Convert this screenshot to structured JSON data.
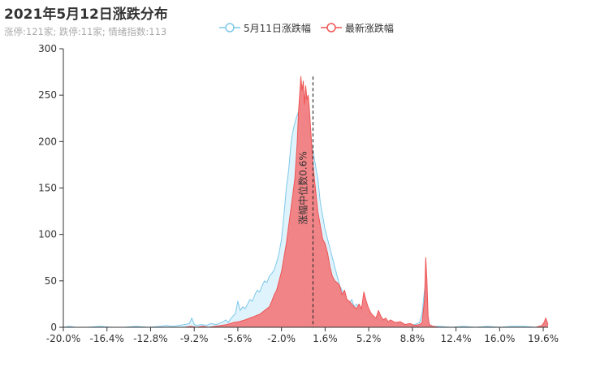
{
  "chart_data": {
    "type": "area",
    "title": "2021年5月12日涨跌分布",
    "subtitle": "涨停:121家; 跌停:11家; 情绪指数:113",
    "xlabel": "",
    "ylabel": "",
    "xlim": [
      -20.0,
      20.0
    ],
    "ylim": [
      0,
      300
    ],
    "yticks": [
      0,
      50,
      100,
      150,
      200,
      250,
      300
    ],
    "xtick_labels": [
      "-20.0%",
      "-16.4%",
      "-12.8%",
      "-9.2%",
      "-5.6%",
      "-2.0%",
      "1.6%",
      "5.2%",
      "8.8%",
      "12.4%",
      "16.0%",
      "19.6%"
    ],
    "legend_position": "top-center",
    "grid": false,
    "series": [
      {
        "name": "5月11日涨跌幅",
        "color": "#7ec8ea",
        "fill": "#d9f1fb",
        "x": [
          -20.0,
          -19.5,
          -19.0,
          -18.0,
          -17.0,
          -16.0,
          -15.0,
          -14.0,
          -13.0,
          -12.0,
          -11.5,
          -11.0,
          -10.5,
          -10.0,
          -9.6,
          -9.4,
          -9.2,
          -9.0,
          -8.6,
          -8.2,
          -7.8,
          -7.4,
          -7.0,
          -6.8,
          -6.6,
          -6.4,
          -6.2,
          -6.0,
          -5.8,
          -5.6,
          -5.4,
          -5.2,
          -5.0,
          -4.8,
          -4.6,
          -4.4,
          -4.2,
          -4.0,
          -3.8,
          -3.6,
          -3.4,
          -3.2,
          -3.0,
          -2.8,
          -2.6,
          -2.4,
          -2.2,
          -2.0,
          -1.8,
          -1.6,
          -1.4,
          -1.2,
          -1.0,
          -0.8,
          -0.6,
          -0.4,
          -0.2,
          0.0,
          0.2,
          0.4,
          0.6,
          0.8,
          1.0,
          1.2,
          1.4,
          1.6,
          1.8,
          2.0,
          2.2,
          2.4,
          2.6,
          2.8,
          3.0,
          3.2,
          3.4,
          3.6,
          3.8,
          4.0,
          4.2,
          4.4,
          4.6,
          4.8,
          5.0,
          5.2,
          5.4,
          5.6,
          5.8,
          6.0,
          6.2,
          6.4,
          6.6,
          6.8,
          7.0,
          7.4,
          7.8,
          8.2,
          8.6,
          9.0,
          9.4,
          9.6,
          9.8,
          9.9,
          10.0,
          10.1,
          10.2,
          10.5,
          11.0,
          12.0,
          13.0,
          14.0,
          15.0,
          16.0,
          17.0,
          18.0,
          19.0,
          19.6,
          19.8,
          20.0
        ],
        "values": [
          0,
          1,
          0,
          0,
          1,
          0,
          0,
          1,
          0,
          1,
          2,
          1,
          2,
          3,
          4,
          10,
          3,
          2,
          3,
          2,
          4,
          3,
          5,
          6,
          8,
          5,
          9,
          12,
          15,
          28,
          18,
          22,
          20,
          25,
          30,
          28,
          35,
          40,
          38,
          45,
          50,
          48,
          55,
          58,
          62,
          70,
          80,
          95,
          120,
          150,
          170,
          200,
          215,
          225,
          232,
          220,
          215,
          230,
          218,
          200,
          190,
          175,
          160,
          135,
          120,
          105,
          95,
          85,
          75,
          65,
          55,
          45,
          40,
          32,
          28,
          25,
          30,
          22,
          25,
          20,
          18,
          15,
          12,
          14,
          10,
          12,
          8,
          10,
          6,
          8,
          6,
          5,
          4,
          5,
          3,
          3,
          2,
          3,
          5,
          15,
          40,
          46,
          30,
          10,
          3,
          1,
          1,
          0,
          1,
          0,
          1,
          0,
          1,
          1,
          0,
          2,
          0,
          1
        ]
      },
      {
        "name": "最新涨跌幅",
        "color": "#ee5555",
        "fill": "#f17d81",
        "x": [
          -20.0,
          -19.0,
          -18.0,
          -17.0,
          -16.0,
          -15.0,
          -14.0,
          -13.0,
          -12.0,
          -11.0,
          -10.0,
          -9.5,
          -9.0,
          -8.5,
          -8.0,
          -7.5,
          -7.0,
          -6.5,
          -6.0,
          -5.5,
          -5.0,
          -4.6,
          -4.2,
          -3.8,
          -3.4,
          -3.0,
          -2.8,
          -2.6,
          -2.4,
          -2.2,
          -2.0,
          -1.8,
          -1.6,
          -1.4,
          -1.2,
          -1.0,
          -0.9,
          -0.8,
          -0.7,
          -0.6,
          -0.5,
          -0.4,
          -0.3,
          -0.2,
          -0.1,
          0.0,
          0.1,
          0.2,
          0.3,
          0.4,
          0.5,
          0.6,
          0.8,
          1.0,
          1.2,
          1.4,
          1.6,
          1.8,
          2.0,
          2.2,
          2.4,
          2.6,
          2.8,
          3.0,
          3.2,
          3.4,
          3.6,
          3.8,
          4.0,
          4.2,
          4.4,
          4.6,
          4.8,
          5.0,
          5.2,
          5.4,
          5.6,
          5.8,
          6.0,
          6.2,
          6.4,
          6.6,
          6.8,
          7.0,
          7.4,
          7.8,
          8.2,
          8.6,
          9.0,
          9.4,
          9.6,
          9.8,
          9.9,
          10.0,
          10.1,
          10.2,
          10.5,
          11.0,
          12.0,
          13.0,
          14.0,
          15.0,
          16.0,
          17.0,
          18.0,
          19.0,
          19.5,
          19.7,
          19.8,
          20.0
        ],
        "values": [
          0,
          0,
          0,
          0,
          0,
          0,
          0,
          0,
          0,
          0,
          0,
          1,
          0,
          1,
          0,
          1,
          2,
          3,
          5,
          6,
          8,
          10,
          12,
          14,
          18,
          22,
          28,
          35,
          40,
          50,
          60,
          75,
          90,
          110,
          130,
          150,
          160,
          180,
          200,
          230,
          250,
          270,
          255,
          265,
          240,
          260,
          245,
          250,
          235,
          215,
          195,
          175,
          150,
          125,
          110,
          95,
          90,
          80,
          65,
          55,
          50,
          48,
          45,
          35,
          40,
          30,
          28,
          25,
          22,
          20,
          25,
          20,
          38,
          28,
          20,
          15,
          12,
          10,
          18,
          12,
          8,
          10,
          6,
          8,
          5,
          6,
          3,
          4,
          2,
          3,
          5,
          30,
          75,
          50,
          12,
          3,
          1,
          0,
          0,
          0,
          0,
          0,
          0,
          0,
          0,
          0,
          2,
          6,
          10,
          3
        ]
      }
    ],
    "markline": {
      "x": 0.6,
      "label": "涨幅中位数0.6%"
    }
  }
}
